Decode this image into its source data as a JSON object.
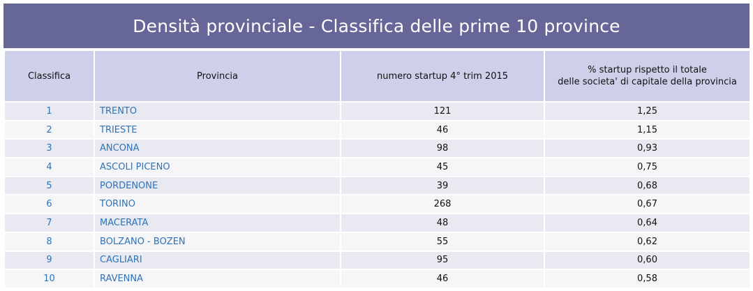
{
  "title": "Densità provinciale - Classifica delle prime 10 province",
  "headers": {
    "rank": "Classifica",
    "province": "Provincia",
    "startups": "numero startup 4° trim 2015",
    "percent_line1": "% startup rispetto il totale",
    "percent_line2": "delle societa' di capitale della provincia"
  },
  "rows": [
    {
      "rank": "1",
      "province": "TRENTO",
      "startups": "121",
      "percent": "1,25"
    },
    {
      "rank": "2",
      "province": "TRIESTE",
      "startups": "46",
      "percent": "1,15"
    },
    {
      "rank": "3",
      "province": "ANCONA",
      "startups": "98",
      "percent": "0,93"
    },
    {
      "rank": "4",
      "province": "ASCOLI PICENO",
      "startups": "45",
      "percent": "0,75"
    },
    {
      "rank": "5",
      "province": "PORDENONE",
      "startups": "39",
      "percent": "0,68"
    },
    {
      "rank": "6",
      "province": "TORINO",
      "startups": "268",
      "percent": "0,67"
    },
    {
      "rank": "7",
      "province": "MACERATA",
      "startups": "48",
      "percent": "0,64"
    },
    {
      "rank": "8",
      "province": "BOLZANO - BOZEN",
      "startups": "55",
      "percent": "0,62"
    },
    {
      "rank": "9",
      "province": "CAGLIARI",
      "startups": "95",
      "percent": "0,60"
    },
    {
      "rank": "10",
      "province": "RAVENNA",
      "startups": "46",
      "percent": "0,58"
    }
  ],
  "colors": {
    "title_bar": "#666699",
    "header_fill": "#cdd0e8",
    "row_odd": "#e9eaf1",
    "row_even": "#f6f6f9",
    "link_text": "#2e72b8"
  }
}
